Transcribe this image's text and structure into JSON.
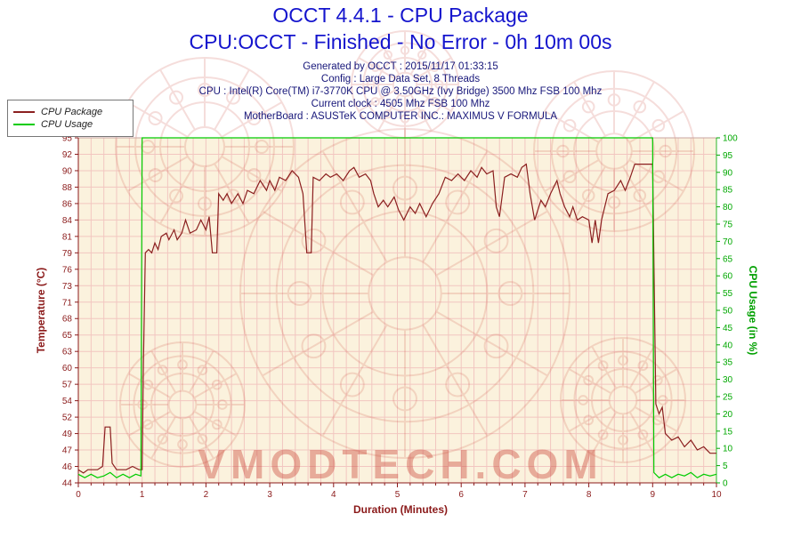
{
  "title": "OCCT 4.4.1 - CPU Package",
  "subtitle": "CPU:OCCT - Finished - No Error - 0h 10m 00s",
  "info_lines": [
    "Generated by OCCT : 2015/11/17 01:33:15",
    "Config : Large Data Set, 8 Threads",
    "CPU : Intel(R) Core(TM) i7-3770K CPU @ 3.50GHz (Ivy Bridge) 3500 Mhz FSB 100 Mhz",
    "Current clock : 4505 Mhz FSB 100 Mhz",
    "MotherBoard : ASUSTeK COMPUTER INC.: MAXIMUS V FORMULA"
  ],
  "legend": [
    {
      "label": "CPU Package",
      "color": "#8b1f1f"
    },
    {
      "label": "CPU Usage",
      "color": "#00cc00"
    }
  ],
  "watermark": {
    "text": "VMODTECH.COM",
    "color": "#cc4a3c"
  },
  "chart_data": {
    "type": "line",
    "title": "OCCT 4.4.1 - CPU Package",
    "x_axis": {
      "label": "Duration (Minutes)",
      "min": 0,
      "max": 10,
      "minor_step": 0.2,
      "major_ticks": [
        0,
        1,
        2,
        3,
        4,
        5,
        6,
        7,
        8,
        9,
        10
      ]
    },
    "y_left": {
      "label": "Temperature (°C)",
      "min": 44,
      "max": 96.5,
      "color": "#8b1a1a",
      "ticks": [
        44,
        46,
        47,
        49,
        52,
        54,
        57,
        60,
        63,
        65,
        68,
        71,
        73,
        76,
        79,
        81,
        84,
        86,
        88,
        90,
        92,
        95
      ]
    },
    "y_right": {
      "label": "CPU Usage (in %)",
      "min": 0,
      "max": 100,
      "color": "#00a800",
      "ticks": [
        0,
        5,
        10,
        15,
        20,
        25,
        30,
        35,
        40,
        45,
        50,
        55,
        60,
        65,
        70,
        75,
        80,
        85,
        90,
        95,
        100
      ]
    },
    "series": [
      {
        "name": "CPU Package",
        "axis": "left",
        "color": "#8b1f1f",
        "points": [
          [
            0,
            46
          ],
          [
            0.08,
            45.5
          ],
          [
            0.15,
            46
          ],
          [
            0.3,
            46
          ],
          [
            0.38,
            46.5
          ],
          [
            0.42,
            52.5
          ],
          [
            0.5,
            52.5
          ],
          [
            0.53,
            47
          ],
          [
            0.6,
            46
          ],
          [
            0.75,
            46
          ],
          [
            0.85,
            46.5
          ],
          [
            0.95,
            46
          ],
          [
            1.0,
            46
          ],
          [
            1.02,
            62
          ],
          [
            1.05,
            79
          ],
          [
            1.1,
            79.5
          ],
          [
            1.15,
            79
          ],
          [
            1.2,
            80.5
          ],
          [
            1.25,
            79.5
          ],
          [
            1.3,
            81.5
          ],
          [
            1.38,
            82
          ],
          [
            1.42,
            81
          ],
          [
            1.5,
            82.5
          ],
          [
            1.55,
            81
          ],
          [
            1.62,
            82
          ],
          [
            1.68,
            84
          ],
          [
            1.75,
            82
          ],
          [
            1.85,
            82.5
          ],
          [
            1.92,
            84
          ],
          [
            2.0,
            82.5
          ],
          [
            2.05,
            84.5
          ],
          [
            2.1,
            79
          ],
          [
            2.17,
            79
          ],
          [
            2.2,
            88
          ],
          [
            2.27,
            87
          ],
          [
            2.33,
            88
          ],
          [
            2.4,
            86.5
          ],
          [
            2.5,
            88
          ],
          [
            2.58,
            86.5
          ],
          [
            2.65,
            88.5
          ],
          [
            2.75,
            88
          ],
          [
            2.85,
            90
          ],
          [
            2.95,
            88.5
          ],
          [
            3.0,
            90
          ],
          [
            3.08,
            88.5
          ],
          [
            3.15,
            90.5
          ],
          [
            3.25,
            90
          ],
          [
            3.35,
            91.5
          ],
          [
            3.45,
            90.5
          ],
          [
            3.52,
            88
          ],
          [
            3.58,
            79
          ],
          [
            3.65,
            79
          ],
          [
            3.68,
            90.5
          ],
          [
            3.78,
            90
          ],
          [
            3.88,
            91
          ],
          [
            3.95,
            90.5
          ],
          [
            4.05,
            91
          ],
          [
            4.15,
            90
          ],
          [
            4.25,
            91.5
          ],
          [
            4.32,
            92
          ],
          [
            4.4,
            90.5
          ],
          [
            4.5,
            91
          ],
          [
            4.58,
            90
          ],
          [
            4.63,
            88
          ],
          [
            4.7,
            86
          ],
          [
            4.78,
            87
          ],
          [
            4.85,
            86
          ],
          [
            4.95,
            87.5
          ],
          [
            5.02,
            85.5
          ],
          [
            5.1,
            84
          ],
          [
            5.2,
            86
          ],
          [
            5.28,
            85
          ],
          [
            5.35,
            86.5
          ],
          [
            5.45,
            84.5
          ],
          [
            5.55,
            86.5
          ],
          [
            5.65,
            88
          ],
          [
            5.75,
            90.5
          ],
          [
            5.85,
            90
          ],
          [
            5.95,
            91
          ],
          [
            6.05,
            90
          ],
          [
            6.15,
            91.5
          ],
          [
            6.25,
            90.5
          ],
          [
            6.32,
            92
          ],
          [
            6.4,
            91
          ],
          [
            6.5,
            91.5
          ],
          [
            6.55,
            86
          ],
          [
            6.6,
            84.5
          ],
          [
            6.68,
            90.5
          ],
          [
            6.78,
            91
          ],
          [
            6.88,
            90.5
          ],
          [
            6.95,
            92
          ],
          [
            7.02,
            92.5
          ],
          [
            7.08,
            88
          ],
          [
            7.15,
            84
          ],
          [
            7.25,
            87
          ],
          [
            7.32,
            86
          ],
          [
            7.4,
            88
          ],
          [
            7.5,
            90
          ],
          [
            7.55,
            88
          ],
          [
            7.62,
            86
          ],
          [
            7.7,
            84.5
          ],
          [
            7.75,
            86
          ],
          [
            7.82,
            84
          ],
          [
            7.9,
            84.5
          ],
          [
            8.0,
            84
          ],
          [
            8.05,
            80.5
          ],
          [
            8.1,
            84
          ],
          [
            8.15,
            80.5
          ],
          [
            8.2,
            84
          ],
          [
            8.3,
            88
          ],
          [
            8.4,
            88.5
          ],
          [
            8.5,
            90
          ],
          [
            8.57,
            88.5
          ],
          [
            8.65,
            90.5
          ],
          [
            8.72,
            92.5
          ],
          [
            8.85,
            92.5
          ],
          [
            9.0,
            92.5
          ],
          [
            9.02,
            78
          ],
          [
            9.05,
            56
          ],
          [
            9.1,
            54.5
          ],
          [
            9.15,
            55.5
          ],
          [
            9.2,
            51.5
          ],
          [
            9.3,
            50.5
          ],
          [
            9.4,
            51
          ],
          [
            9.5,
            49.5
          ],
          [
            9.6,
            50.5
          ],
          [
            9.7,
            49
          ],
          [
            9.8,
            49.5
          ],
          [
            9.9,
            48.5
          ],
          [
            10,
            48.5
          ]
        ]
      },
      {
        "name": "CPU Usage",
        "axis": "right",
        "color": "#00cc00",
        "points": [
          [
            0,
            2.5
          ],
          [
            0.1,
            1.5
          ],
          [
            0.2,
            2.5
          ],
          [
            0.3,
            1.5
          ],
          [
            0.4,
            2
          ],
          [
            0.5,
            3
          ],
          [
            0.6,
            1.5
          ],
          [
            0.7,
            2.5
          ],
          [
            0.8,
            1.5
          ],
          [
            0.9,
            2.5
          ],
          [
            0.98,
            2
          ],
          [
            1.0,
            100
          ],
          [
            9.0,
            100
          ],
          [
            9.02,
            3
          ],
          [
            9.1,
            1.5
          ],
          [
            9.2,
            2.5
          ],
          [
            9.3,
            1.5
          ],
          [
            9.4,
            2.5
          ],
          [
            9.5,
            2
          ],
          [
            9.6,
            3
          ],
          [
            9.7,
            1.5
          ],
          [
            9.8,
            2.5
          ],
          [
            9.9,
            2
          ],
          [
            10,
            2.5
          ]
        ]
      }
    ]
  }
}
